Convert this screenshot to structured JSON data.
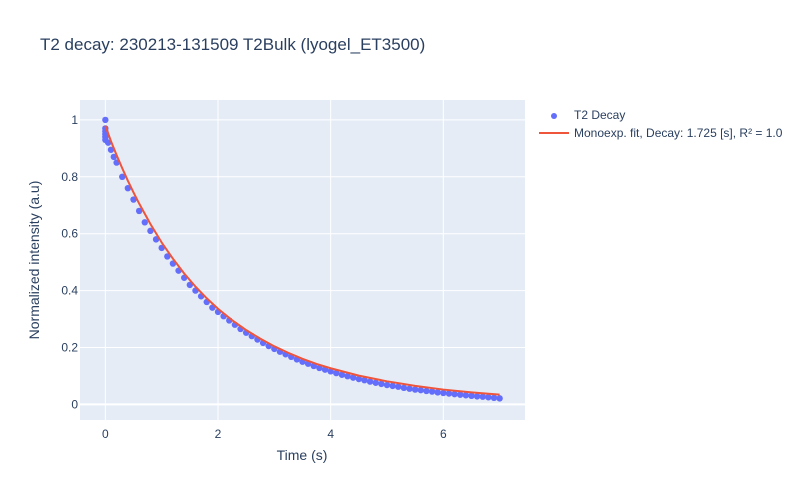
{
  "chart_data": {
    "type": "scatter",
    "title": "T2 decay: 230213-131509 T2Bulk (lyogel_ET3500)",
    "xlabel": "Time (s)",
    "ylabel": "Normalized intensity (a.u)",
    "xlim": [
      -0.45,
      7.45
    ],
    "ylim": [
      -0.055,
      1.07
    ],
    "xticks": [
      0,
      2,
      4,
      6
    ],
    "yticks": [
      0,
      0.2,
      0.4,
      0.6,
      0.8,
      1
    ],
    "ytick_labels": [
      "0",
      "0.2",
      "0.4",
      "0.6",
      "0.8",
      "1"
    ],
    "grid": true,
    "legend_position": "top-right outside",
    "series": [
      {
        "name": "T2 Decay",
        "mode": "markers",
        "color": "#636efa",
        "x": [
          0.0,
          0.0,
          0.0,
          0.0,
          0.0,
          0.0,
          0.05,
          0.1,
          0.15,
          0.2,
          0.3,
          0.4,
          0.5,
          0.6,
          0.7,
          0.8,
          0.9,
          1.0,
          1.1,
          1.2,
          1.3,
          1.4,
          1.5,
          1.6,
          1.7,
          1.8,
          1.9,
          2.0,
          2.1,
          2.2,
          2.3,
          2.4,
          2.5,
          2.6,
          2.7,
          2.8,
          2.9,
          3.0,
          3.1,
          3.2,
          3.3,
          3.4,
          3.5,
          3.6,
          3.7,
          3.8,
          3.9,
          4.0,
          4.1,
          4.2,
          4.3,
          4.4,
          4.5,
          4.6,
          4.7,
          4.8,
          4.9,
          5.0,
          5.1,
          5.2,
          5.3,
          5.4,
          5.5,
          5.6,
          5.7,
          5.8,
          5.9,
          6.0,
          6.1,
          6.2,
          6.3,
          6.4,
          6.5,
          6.6,
          6.7,
          6.8,
          6.9,
          7.0
        ],
        "y": [
          1.0,
          0.97,
          0.96,
          0.95,
          0.94,
          0.93,
          0.92,
          0.895,
          0.87,
          0.85,
          0.8,
          0.76,
          0.72,
          0.68,
          0.64,
          0.61,
          0.58,
          0.55,
          0.52,
          0.495,
          0.47,
          0.445,
          0.42,
          0.4,
          0.38,
          0.36,
          0.34,
          0.325,
          0.31,
          0.295,
          0.28,
          0.265,
          0.252,
          0.24,
          0.228,
          0.216,
          0.205,
          0.195,
          0.185,
          0.176,
          0.167,
          0.158,
          0.15,
          0.143,
          0.135,
          0.128,
          0.122,
          0.116,
          0.11,
          0.104,
          0.099,
          0.094,
          0.089,
          0.085,
          0.08,
          0.076,
          0.072,
          0.068,
          0.065,
          0.062,
          0.058,
          0.055,
          0.052,
          0.05,
          0.047,
          0.045,
          0.042,
          0.04,
          0.038,
          0.036,
          0.034,
          0.032,
          0.03,
          0.028,
          0.027,
          0.025,
          0.023,
          0.021
        ]
      },
      {
        "name": "Monoexp. fit, Decay: 1.725 [s], R² = 1.0",
        "mode": "lines",
        "color": "#ef553b",
        "x": [
          0.0,
          0.1,
          0.2,
          0.3,
          0.4,
          0.5,
          0.6,
          0.8,
          1.0,
          1.2,
          1.4,
          1.6,
          1.8,
          2.0,
          2.25,
          2.5,
          2.75,
          3.0,
          3.25,
          3.5,
          3.75,
          4.0,
          4.5,
          5.0,
          5.5,
          6.0,
          6.5,
          7.0
        ],
        "y": [
          0.98,
          0.925,
          0.876,
          0.83,
          0.786,
          0.745,
          0.706,
          0.634,
          0.569,
          0.512,
          0.46,
          0.414,
          0.373,
          0.336,
          0.296,
          0.261,
          0.231,
          0.204,
          0.181,
          0.16,
          0.142,
          0.127,
          0.101,
          0.081,
          0.065,
          0.052,
          0.042,
          0.034
        ]
      }
    ]
  }
}
